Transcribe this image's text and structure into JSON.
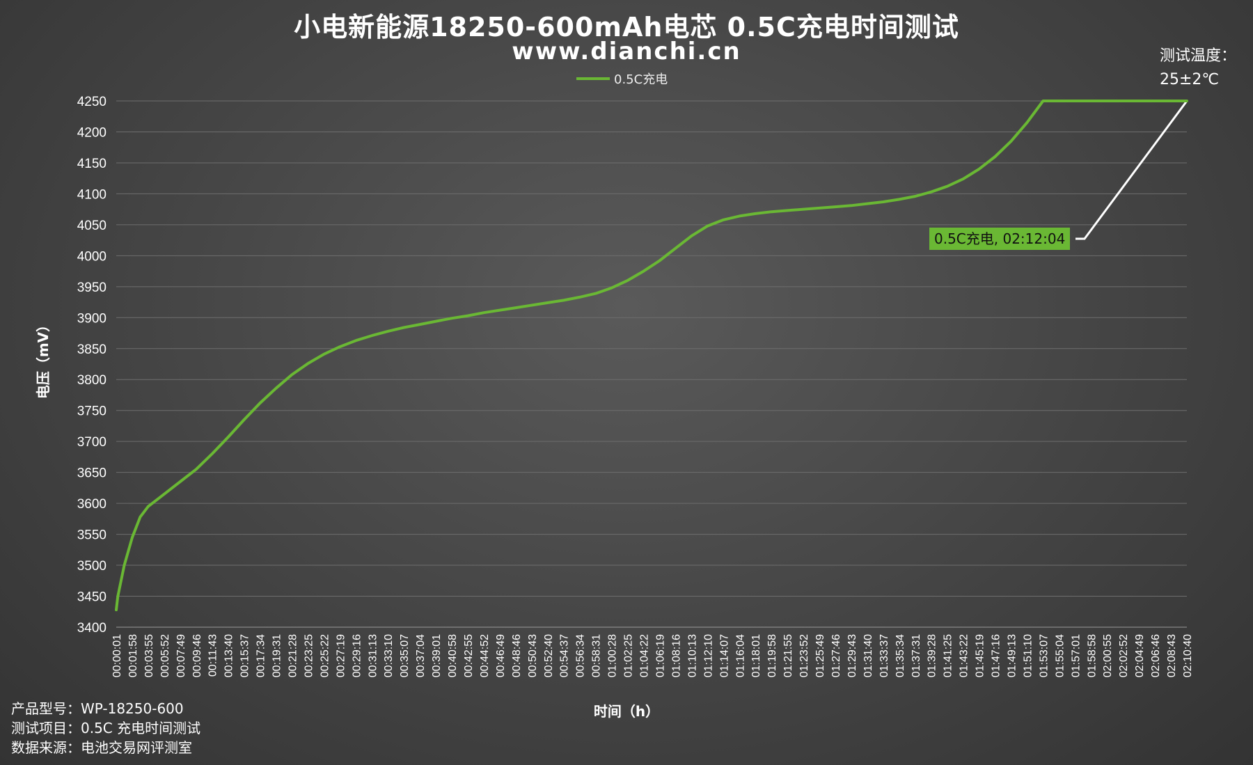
{
  "chart_data": {
    "type": "line",
    "title": "小电新能源18250-600mAh电芯 0.5C充电时间测试",
    "subtitle": "www.dianchi.cn",
    "xlabel": "时间（h）",
    "ylabel": "电压（mV）",
    "ylim": [
      3400,
      4250
    ],
    "yticks": [
      3400,
      3450,
      3500,
      3550,
      3600,
      3650,
      3700,
      3750,
      3800,
      3850,
      3900,
      3950,
      4000,
      4050,
      4100,
      4150,
      4200,
      4250
    ],
    "grid": true,
    "legend_position": "top-center",
    "x_categories": [
      "00:00:01",
      "00:01:58",
      "00:03:55",
      "00:05:52",
      "00:07:49",
      "00:09:46",
      "00:11:43",
      "00:13:40",
      "00:15:37",
      "00:17:34",
      "00:19:31",
      "00:21:28",
      "00:23:25",
      "00:25:22",
      "00:27:19",
      "00:29:16",
      "00:31:13",
      "00:33:10",
      "00:35:07",
      "00:37:04",
      "00:39:01",
      "00:40:58",
      "00:42:55",
      "00:44:52",
      "00:46:49",
      "00:48:46",
      "00:50:43",
      "00:52:40",
      "00:54:37",
      "00:56:34",
      "00:58:31",
      "01:00:28",
      "01:02:25",
      "01:04:22",
      "01:06:19",
      "01:08:16",
      "01:10:13",
      "01:12:10",
      "01:14:07",
      "01:16:04",
      "01:18:01",
      "01:19:58",
      "01:21:55",
      "01:23:52",
      "01:25:49",
      "01:27:46",
      "01:29:43",
      "01:31:40",
      "01:33:37",
      "01:35:34",
      "01:37:31",
      "01:39:28",
      "01:41:25",
      "01:43:22",
      "01:45:19",
      "01:47:16",
      "01:49:13",
      "01:51:10",
      "01:53:07",
      "01:55:04",
      "01:57:01",
      "01:58:58",
      "02:00:55",
      "02:02:52",
      "02:04:49",
      "02:06:46",
      "02:08:43",
      "02:10:40"
    ],
    "series": [
      {
        "name": "0.5C充电",
        "color": "#6ab834",
        "points": [
          [
            0.0,
            3428
          ],
          [
            0.1,
            3450
          ],
          [
            0.5,
            3500
          ],
          [
            1.0,
            3545
          ],
          [
            1.5,
            3578
          ],
          [
            2.0,
            3595
          ],
          [
            3.0,
            3615
          ],
          [
            4.0,
            3635
          ],
          [
            5.0,
            3655
          ],
          [
            6.0,
            3680
          ],
          [
            7.0,
            3707
          ],
          [
            8.0,
            3735
          ],
          [
            9.0,
            3762
          ],
          [
            10.0,
            3786
          ],
          [
            11.0,
            3808
          ],
          [
            12.0,
            3826
          ],
          [
            13.0,
            3841
          ],
          [
            14.0,
            3853
          ],
          [
            15.0,
            3863
          ],
          [
            16.0,
            3871
          ],
          [
            17.0,
            3878
          ],
          [
            18.0,
            3884
          ],
          [
            19.0,
            3889
          ],
          [
            20.0,
            3894
          ],
          [
            21.0,
            3899
          ],
          [
            22.0,
            3903
          ],
          [
            23.0,
            3908
          ],
          [
            24.0,
            3912
          ],
          [
            25.0,
            3916
          ],
          [
            26.0,
            3920
          ],
          [
            27.0,
            3924
          ],
          [
            28.0,
            3928
          ],
          [
            29.0,
            3933
          ],
          [
            30.0,
            3939
          ],
          [
            31.0,
            3948
          ],
          [
            32.0,
            3960
          ],
          [
            33.0,
            3975
          ],
          [
            34.0,
            3992
          ],
          [
            35.0,
            4012
          ],
          [
            36.0,
            4032
          ],
          [
            37.0,
            4048
          ],
          [
            38.0,
            4058
          ],
          [
            39.0,
            4064
          ],
          [
            40.0,
            4068
          ],
          [
            41.0,
            4071
          ],
          [
            42.0,
            4073
          ],
          [
            43.0,
            4075
          ],
          [
            44.0,
            4077
          ],
          [
            45.0,
            4079
          ],
          [
            46.0,
            4081
          ],
          [
            47.0,
            4084
          ],
          [
            48.0,
            4087
          ],
          [
            49.0,
            4091
          ],
          [
            50.0,
            4096
          ],
          [
            51.0,
            4103
          ],
          [
            52.0,
            4112
          ],
          [
            53.0,
            4124
          ],
          [
            54.0,
            4140
          ],
          [
            55.0,
            4160
          ],
          [
            56.0,
            4185
          ],
          [
            57.0,
            4215
          ],
          [
            58.0,
            4250
          ],
          [
            59.0,
            4250
          ],
          [
            62.0,
            4250
          ],
          [
            65.0,
            4250
          ],
          [
            67.0,
            4250
          ]
        ]
      }
    ],
    "annotation": {
      "text": "0.5C充电, 02:12:04",
      "x": 67.0,
      "y": 4250
    }
  },
  "info": {
    "line1": "产品型号：WP-18250-600",
    "line2": "测试项目：0.5C 充电时间测试",
    "line3": "数据来源：电池交易网评测室"
  },
  "temperature": {
    "label": "测试温度：",
    "value": "25±2℃"
  }
}
